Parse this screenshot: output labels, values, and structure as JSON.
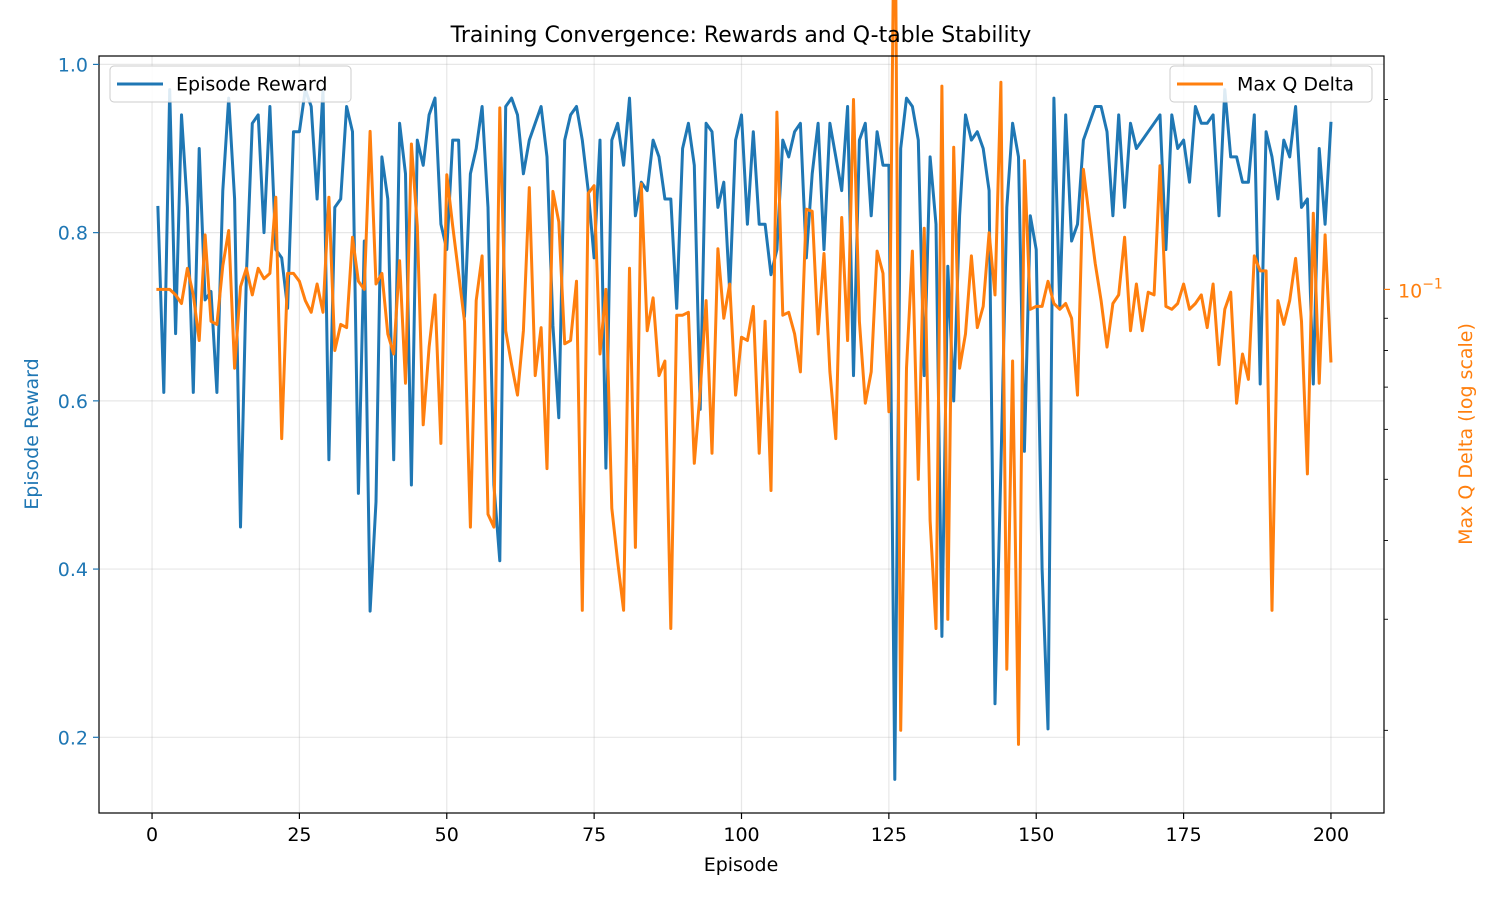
{
  "chart_data": {
    "type": "line",
    "title": "Training Convergence: Rewards and Q-table Stability",
    "xlabel": "Episode",
    "ylabel_left": "Episode Reward",
    "ylabel_right": "Max Q Delta (log scale)",
    "xlim": [
      -9,
      209
    ],
    "ylim_left": [
      0.11,
      1.01
    ],
    "ylim_right_log10": [
      -1.83,
      -0.63
    ],
    "yscale_right": "log",
    "grid": true,
    "x_ticks": [
      0,
      25,
      50,
      75,
      100,
      125,
      150,
      175,
      200
    ],
    "y_ticks_left": [
      0.2,
      0.4,
      0.6,
      0.8,
      1.0
    ],
    "y_tick_labels_left": [
      "0.2",
      "0.4",
      "0.6",
      "0.8",
      "1.0"
    ],
    "y_major_tick_right": {
      "value": 0.1,
      "label_base": "10",
      "label_exp": "−1"
    },
    "y_minor_ticks_right": [
      0.02,
      0.03,
      0.04,
      0.05,
      0.06,
      0.07,
      0.08,
      0.09,
      0.2
    ],
    "legend_left": {
      "label": "Episode Reward",
      "position": "upper left"
    },
    "legend_right": {
      "label": "Max Q Delta",
      "position": "upper right"
    },
    "colors": {
      "reward": "#1f77b4",
      "qdelta": "#ff7f0e"
    },
    "series": [
      {
        "name": "Episode Reward",
        "axis": "left",
        "values": [
          0.83,
          0.61,
          0.97,
          0.68,
          0.94,
          0.83,
          0.61,
          0.9,
          0.72,
          0.73,
          0.61,
          0.85,
          0.96,
          0.84,
          0.45,
          0.75,
          0.93,
          0.94,
          0.8,
          0.95,
          0.78,
          0.77,
          0.71,
          0.92,
          0.92,
          0.97,
          0.95,
          0.84,
          0.97,
          0.53,
          0.83,
          0.84,
          0.95,
          0.92,
          0.49,
          0.79,
          0.35,
          0.48,
          0.89,
          0.84,
          0.53,
          0.93,
          0.87,
          0.5,
          0.91,
          0.88,
          0.94,
          0.96,
          0.81,
          0.78,
          0.91,
          0.91,
          0.7,
          0.87,
          0.9,
          0.95,
          0.83,
          0.5,
          0.41,
          0.95,
          0.96,
          0.94,
          0.87,
          0.91,
          0.93,
          0.95,
          0.89,
          0.69,
          0.58,
          0.91,
          0.94,
          0.95,
          0.91,
          0.85,
          0.77,
          0.91,
          0.52,
          0.91,
          0.93,
          0.88,
          0.96,
          0.82,
          0.86,
          0.85,
          0.91,
          0.89,
          0.84,
          0.84,
          0.71,
          0.9,
          0.93,
          0.88,
          0.59,
          0.93,
          0.92,
          0.83,
          0.86,
          0.73,
          0.91,
          0.94,
          0.81,
          0.92,
          0.81,
          0.81,
          0.75,
          0.78,
          0.91,
          0.89,
          0.92,
          0.93,
          0.77,
          0.87,
          0.93,
          0.78,
          0.93,
          0.89,
          0.85,
          0.95,
          0.63,
          0.91,
          0.93,
          0.82,
          0.92,
          0.88,
          0.88,
          0.15,
          0.9,
          0.96,
          0.95,
          0.91,
          0.63,
          0.89,
          0.81,
          0.32,
          0.76,
          0.6,
          0.82,
          0.94,
          0.91,
          0.92,
          0.9,
          0.85,
          0.24,
          0.52,
          0.83,
          0.93,
          0.89,
          0.54,
          0.82,
          0.78,
          0.4,
          0.21,
          0.96,
          0.71,
          0.94,
          0.79,
          0.81,
          0.91,
          0.93,
          0.95,
          0.95,
          0.92,
          0.82,
          0.94,
          0.83,
          0.93,
          0.9,
          0.91,
          0.92,
          0.93,
          0.94,
          0.78,
          0.94,
          0.9,
          0.91,
          0.86,
          0.95,
          0.93,
          0.93,
          0.94,
          0.82,
          0.97,
          0.89,
          0.89,
          0.86,
          0.86,
          0.94,
          0.62,
          0.92,
          0.89,
          0.84,
          0.91,
          0.89,
          0.95,
          0.83,
          0.84,
          0.62,
          0.9,
          0.81,
          0.93
        ]
      },
      {
        "name": "Max Q Delta",
        "axis": "right",
        "values": [
          0.1,
          0.1,
          0.1,
          0.098,
          0.095,
          0.108,
          0.098,
          0.083,
          0.122,
          0.089,
          0.088,
          0.109,
          0.124,
          0.075,
          0.101,
          0.108,
          0.098,
          0.108,
          0.104,
          0.106,
          0.14,
          0.058,
          0.106,
          0.106,
          0.103,
          0.096,
          0.092,
          0.102,
          0.092,
          0.14,
          0.08,
          0.088,
          0.087,
          0.121,
          0.103,
          0.1,
          0.178,
          0.102,
          0.106,
          0.085,
          0.079,
          0.111,
          0.071,
          0.17,
          0.126,
          0.061,
          0.081,
          0.098,
          0.057,
          0.152,
          0.126,
          0.106,
          0.089,
          0.042,
          0.096,
          0.113,
          0.044,
          0.042,
          0.194,
          0.086,
          0.076,
          0.068,
          0.086,
          0.145,
          0.073,
          0.087,
          0.052,
          0.143,
          0.128,
          0.082,
          0.083,
          0.103,
          0.031,
          0.142,
          0.146,
          0.079,
          0.1,
          0.045,
          0.037,
          0.031,
          0.108,
          0.039,
          0.147,
          0.086,
          0.097,
          0.073,
          0.077,
          0.029,
          0.091,
          0.091,
          0.092,
          0.053,
          0.069,
          0.096,
          0.055,
          0.116,
          0.09,
          0.102,
          0.068,
          0.084,
          0.083,
          0.094,
          0.055,
          0.089,
          0.048,
          0.191,
          0.091,
          0.092,
          0.085,
          0.074,
          0.134,
          0.133,
          0.085,
          0.114,
          0.074,
          0.058,
          0.13,
          0.083,
          0.2,
          0.089,
          0.066,
          0.074,
          0.115,
          0.106,
          0.064,
          0.52,
          0.02,
          0.075,
          0.115,
          0.05,
          0.125,
          0.043,
          0.029,
          0.21,
          0.03,
          0.168,
          0.075,
          0.085,
          0.113,
          0.087,
          0.094,
          0.123,
          0.098,
          0.213,
          0.025,
          0.077,
          0.019,
          0.16,
          0.093,
          0.094,
          0.094,
          0.103,
          0.095,
          0.093,
          0.095,
          0.09,
          0.068,
          0.155,
          0.13,
          0.11,
          0.096,
          0.081,
          0.095,
          0.098,
          0.121,
          0.086,
          0.102,
          0.086,
          0.099,
          0.098,
          0.157,
          0.094,
          0.093,
          0.095,
          0.102,
          0.093,
          0.095,
          0.098,
          0.087,
          0.102,
          0.076,
          0.093,
          0.099,
          0.066,
          0.079,
          0.072,
          0.113,
          0.107,
          0.107,
          0.031,
          0.096,
          0.088,
          0.096,
          0.112,
          0.089,
          0.051,
          0.132,
          0.071,
          0.122,
          0.077
        ]
      }
    ]
  }
}
